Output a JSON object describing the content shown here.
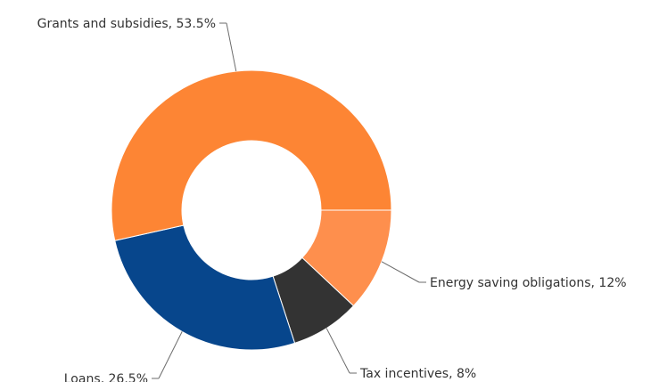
{
  "chart_data": {
    "type": "pie",
    "style": "donut",
    "slices": [
      {
        "name": "Energy saving obligations",
        "value": 12,
        "label": "Energy saving obligations, 12%",
        "color": "#fe8f4d"
      },
      {
        "name": "Tax incentives",
        "value": 8,
        "label": "Tax incentives, 8%",
        "color": "#333333"
      },
      {
        "name": "Loans",
        "value": 26.5,
        "label": "Loans, 26.5%",
        "color": "#07468c"
      },
      {
        "name": "Grants and subsidies",
        "value": 53.5,
        "label": "Grants and subsidies, 53.5%",
        "color": "#fd8534"
      }
    ],
    "title": "",
    "legend": "none"
  }
}
